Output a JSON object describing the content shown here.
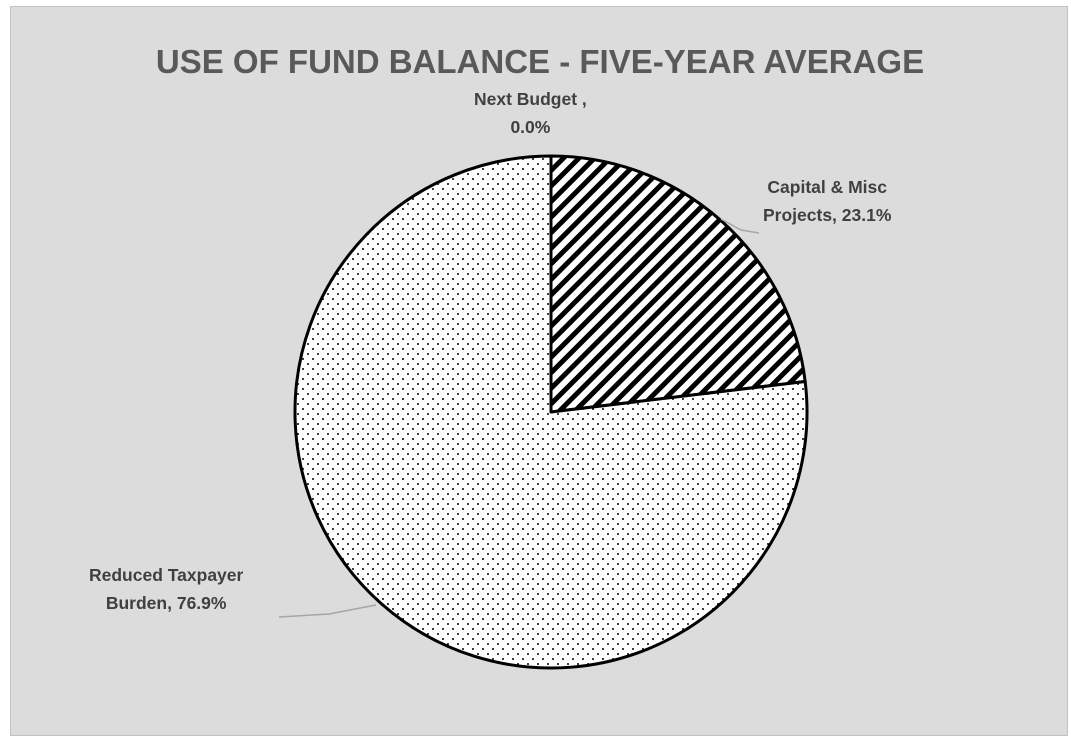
{
  "chart_data": {
    "type": "pie",
    "title": "USE OF FUND BALANCE - FIVE-YEAR AVERAGE",
    "slices": [
      {
        "label_lines": [
          "Capital & Misc",
          "Projects, 23.1%"
        ],
        "value": 23.1,
        "pattern": "diagonal-stripes"
      },
      {
        "label_lines": [
          "Reduced Taxpayer",
          "Burden, 76.9%"
        ],
        "value": 76.9,
        "pattern": "dots"
      },
      {
        "label_lines": [
          "Next Budget ,",
          "0.0%"
        ],
        "value": 0.0,
        "pattern": "none"
      }
    ],
    "legend": "none",
    "colors": {
      "background": "#dcdcdc",
      "title": "#595959",
      "labels": "#404040",
      "slice_fill": "#ffffff",
      "slice_stroke": "#000000",
      "leader_line": "#a6a6a6"
    }
  }
}
